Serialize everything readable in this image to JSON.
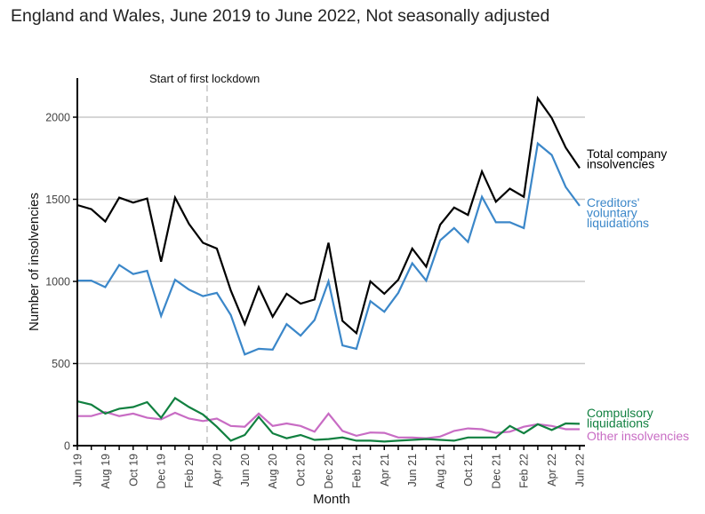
{
  "subtitle": "England and Wales, June 2019 to June 2022, Not seasonally adjusted",
  "chart_data": {
    "type": "line",
    "title": "",
    "subtitle": "England and Wales, June 2019 to June 2022, Not seasonally adjusted",
    "xlabel": "Month",
    "ylabel": "Number of insolvencies",
    "ylim": [
      0,
      2200
    ],
    "yticks": [
      0,
      500,
      1000,
      1500,
      2000
    ],
    "ytick_labels": [
      "0",
      "500",
      "1000",
      "1500",
      "2000"
    ],
    "grid": true,
    "legend": "direct labels at right end of lines",
    "x": [
      "Jun 19",
      "Jul 19",
      "Aug 19",
      "Sep 19",
      "Oct 19",
      "Nov 19",
      "Dec 19",
      "Jan 20",
      "Feb 20",
      "Mar 20",
      "Apr 20",
      "May 20",
      "Jun 20",
      "Jul 20",
      "Aug 20",
      "Sep 20",
      "Oct 20",
      "Nov 20",
      "Dec 20",
      "Jan 21",
      "Feb 21",
      "Mar 21",
      "Apr 21",
      "May 21",
      "Jun 21",
      "Jul 21",
      "Aug 21",
      "Sep 21",
      "Oct 21",
      "Nov 21",
      "Dec 21",
      "Jan 22",
      "Feb 22",
      "Mar 22",
      "Apr 22",
      "May 22",
      "Jun 22"
    ],
    "xtick_labels": [
      "Jun 19",
      "Aug 19",
      "Oct 19",
      "Dec 19",
      "Feb 20",
      "Apr 20",
      "Jun 20",
      "Aug 20",
      "Oct 20",
      "Dec 20",
      "Feb 21",
      "Apr 21",
      "Jun 21",
      "Aug 21",
      "Oct 21",
      "Dec 21",
      "Feb 22",
      "Apr 22",
      "Jun 22"
    ],
    "annotations": [
      {
        "text": "Start of first lockdown",
        "x": "Mar 20",
        "x_index": 9.3,
        "style": "dashed vertical line"
      }
    ],
    "series": [
      {
        "name": "Total company insolvencies",
        "label_lines": [
          "Total company",
          "insolvencies"
        ],
        "color": "#000000",
        "values": [
          1465,
          1440,
          1365,
          1510,
          1480,
          1505,
          1120,
          1510,
          1350,
          1235,
          1200,
          945,
          740,
          965,
          785,
          925,
          865,
          890,
          1235,
          760,
          685,
          1000,
          925,
          1010,
          1200,
          1090,
          1345,
          1450,
          1405,
          1670,
          1485,
          1565,
          1515,
          2115,
          1995,
          1815,
          1690
        ]
      },
      {
        "name": "Creditors' voluntary liquidations",
        "label_lines": [
          "Creditors'",
          "voluntary",
          "liquidations"
        ],
        "color": "#3b87c9",
        "values": [
          1005,
          1005,
          965,
          1100,
          1045,
          1065,
          790,
          1010,
          950,
          910,
          930,
          795,
          555,
          590,
          585,
          740,
          670,
          765,
          1000,
          610,
          590,
          880,
          815,
          930,
          1110,
          1005,
          1250,
          1325,
          1240,
          1515,
          1360,
          1360,
          1325,
          1840,
          1770,
          1575,
          1460
        ]
      },
      {
        "name": "Compulsory liquidations",
        "label_lines": [
          "Compulsory",
          "liquidations"
        ],
        "color": "#118040",
        "values": [
          270,
          250,
          195,
          225,
          235,
          265,
          170,
          290,
          235,
          190,
          115,
          30,
          65,
          175,
          75,
          45,
          65,
          35,
          40,
          50,
          30,
          30,
          25,
          30,
          35,
          40,
          35,
          30,
          50,
          50,
          50,
          120,
          75,
          130,
          95,
          135,
          133
        ]
      },
      {
        "name": "Other insolvencies",
        "label_lines": [
          "Other insolvencies"
        ],
        "color": "#c86cc4",
        "values": [
          180,
          180,
          205,
          180,
          195,
          170,
          160,
          200,
          165,
          150,
          165,
          120,
          115,
          195,
          120,
          135,
          120,
          85,
          195,
          90,
          60,
          80,
          78,
          50,
          50,
          45,
          55,
          90,
          105,
          100,
          78,
          85,
          115,
          130,
          120,
          100,
          100
        ]
      }
    ]
  }
}
